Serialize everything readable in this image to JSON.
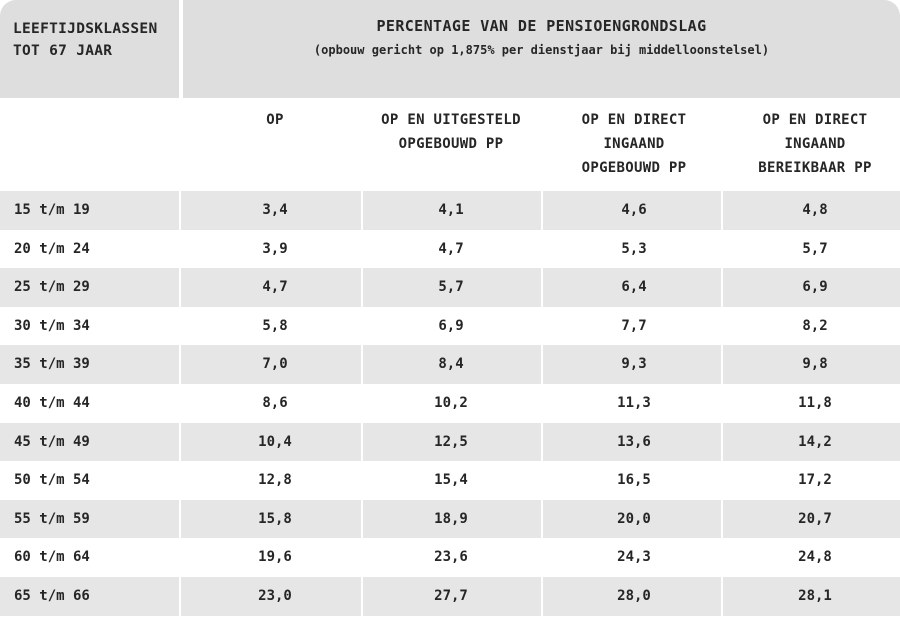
{
  "table": {
    "corner_line1": "LEEFTIJDSKLASSEN",
    "corner_line2": "TOT 67 JAAR",
    "title": "PERCENTAGE VAN DE PENSIOENGRONDSLAG",
    "subtitle": "(opbouw gericht op 1,875% per dienstjaar bij middelloonstelsel)",
    "columns": [
      {
        "lines": [
          "OP"
        ]
      },
      {
        "lines": [
          "OP EN UITGESTELD",
          "OPGEBOUWD PP"
        ]
      },
      {
        "lines": [
          "OP EN DIRECT",
          "INGAAND",
          "OPGEBOUWD PP"
        ]
      },
      {
        "lines": [
          "OP EN DIRECT",
          "INGAAND",
          "BEREIKBAAR PP"
        ]
      }
    ],
    "rows": [
      {
        "age": "15 t/m 19",
        "values": [
          "3,4",
          "4,1",
          "4,6",
          "4,8"
        ]
      },
      {
        "age": "20 t/m 24",
        "values": [
          "3,9",
          "4,7",
          "5,3",
          "5,7"
        ]
      },
      {
        "age": "25 t/m 29",
        "values": [
          "4,7",
          "5,7",
          "6,4",
          "6,9"
        ]
      },
      {
        "age": "30 t/m 34",
        "values": [
          "5,8",
          "6,9",
          "7,7",
          "8,2"
        ]
      },
      {
        "age": "35 t/m 39",
        "values": [
          "7,0",
          "8,4",
          "9,3",
          "9,8"
        ]
      },
      {
        "age": "40 t/m 44",
        "values": [
          "8,6",
          "10,2",
          "11,3",
          "11,8"
        ]
      },
      {
        "age": "45 t/m 49",
        "values": [
          "10,4",
          "12,5",
          "13,6",
          "14,2"
        ]
      },
      {
        "age": "50 t/m 54",
        "values": [
          "12,8",
          "15,4",
          "16,5",
          "17,2"
        ]
      },
      {
        "age": "55 t/m 59",
        "values": [
          "15,8",
          "18,9",
          "20,0",
          "20,7"
        ]
      },
      {
        "age": "60 t/m 64",
        "values": [
          "19,6",
          "23,6",
          "24,3",
          "24,8"
        ]
      },
      {
        "age": "65 t/m 66",
        "values": [
          "23,0",
          "27,7",
          "28,0",
          "28,1"
        ]
      }
    ]
  },
  "colors": {
    "header_bg": "#dedede",
    "row_shade": "#e6e6e6",
    "text": "#262626"
  }
}
